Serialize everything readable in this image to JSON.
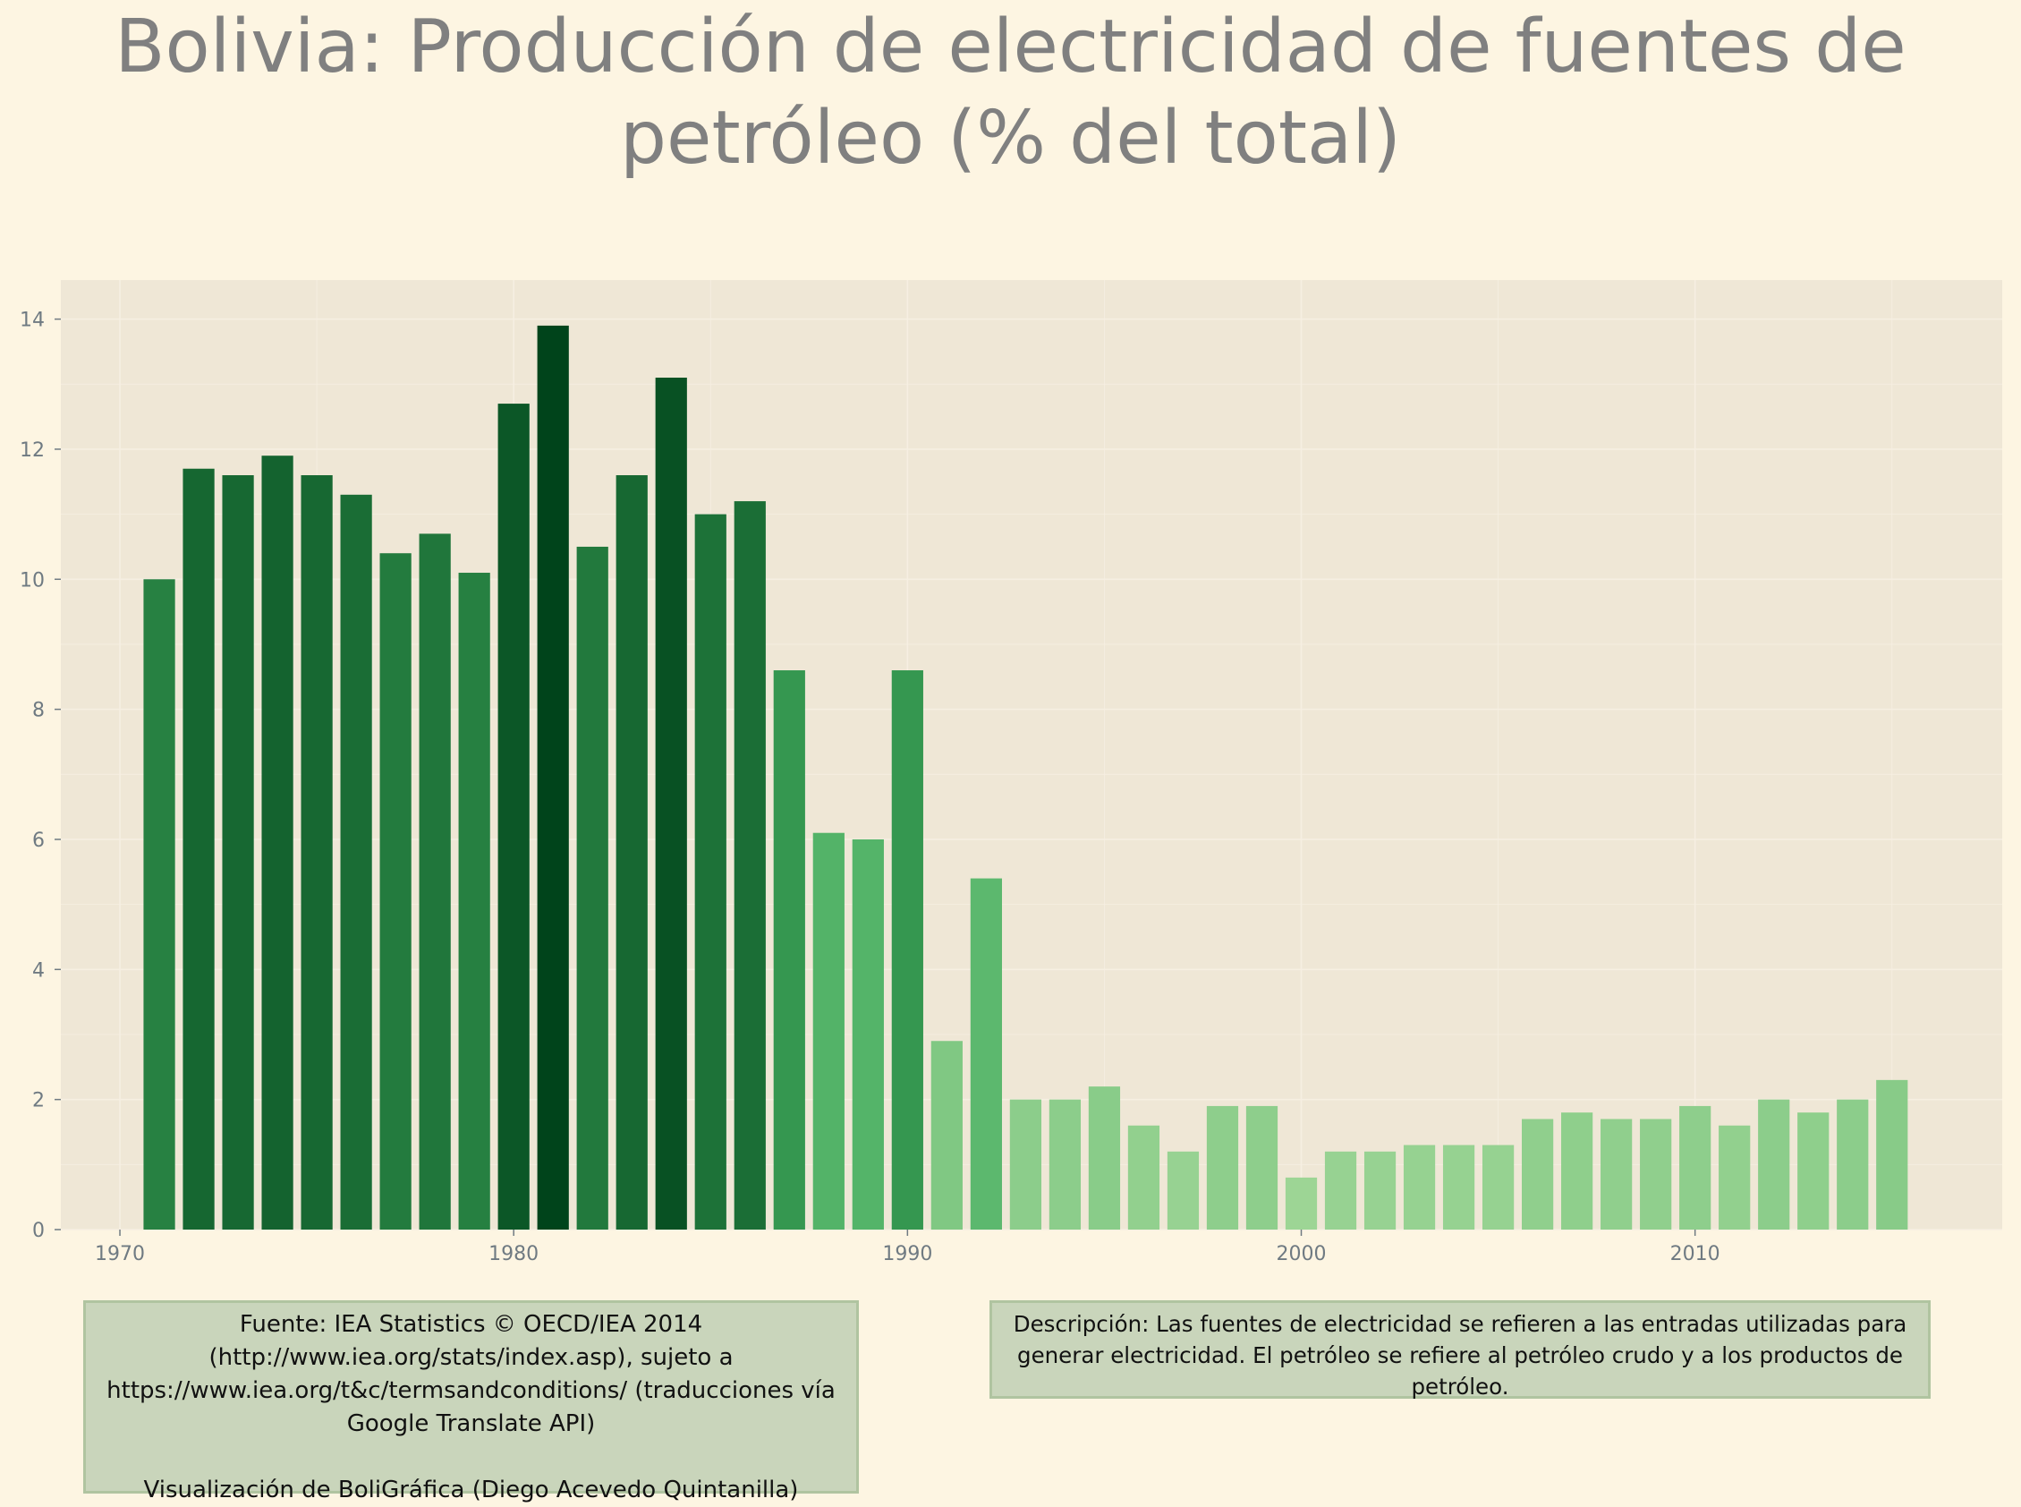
{
  "title": "Bolivia:  Producción de electricidad de fuentes de petróleo (% del total)",
  "source_box": {
    "line1": "Fuente: IEA Statistics © OECD/IEA 2014 (http://www.iea.org/stats/index.asp), sujeto a https://www.iea.org/t&c/termsandconditions/ (traducciones vía Google Translate API)",
    "line2": "Visualización de BoliGráfica (Diego Acevedo Quintanilla)"
  },
  "description_box": {
    "text": "Descripción: Las fuentes de electricidad se refieren a las entradas utilizadas para generar electricidad. El petróleo se refiere al petróleo crudo y a los productos de petróleo."
  },
  "colors": {
    "background": "#fdf5e2",
    "panel": "#efe7d6",
    "color_scale": [
      "#9dd595",
      "#41ab5d",
      "#00441b"
    ]
  },
  "chart_data": {
    "type": "bar",
    "title": "Bolivia:  Producción de electricidad de fuentes de petróleo (% del total)",
    "xlabel": "",
    "ylabel": "",
    "x": [
      1971,
      1972,
      1973,
      1974,
      1975,
      1976,
      1977,
      1978,
      1979,
      1980,
      1981,
      1982,
      1983,
      1984,
      1985,
      1986,
      1987,
      1988,
      1989,
      1990,
      1991,
      1992,
      1993,
      1994,
      1995,
      1996,
      1997,
      1998,
      1999,
      2000,
      2001,
      2002,
      2003,
      2004,
      2005,
      2006,
      2007,
      2008,
      2009,
      2010,
      2011,
      2012,
      2013,
      2014,
      2015
    ],
    "values": [
      10.0,
      11.7,
      11.6,
      11.9,
      11.6,
      11.3,
      10.4,
      10.7,
      10.1,
      12.7,
      13.9,
      10.5,
      11.6,
      13.1,
      11.0,
      11.2,
      8.6,
      6.1,
      6.0,
      8.6,
      2.9,
      5.4,
      2.0,
      2.0,
      2.2,
      1.6,
      1.2,
      1.9,
      1.9,
      0.8,
      1.2,
      1.2,
      1.3,
      1.3,
      1.3,
      1.7,
      1.8,
      1.7,
      1.7,
      1.9,
      1.6,
      2.0,
      1.8,
      2.0,
      2.3
    ],
    "xlim": [
      1968.5,
      2017.8
    ],
    "ylim": [
      0,
      14.6
    ],
    "x_ticks": [
      1970,
      1980,
      1990,
      2000,
      2010
    ],
    "y_ticks": [
      0,
      2,
      4,
      6,
      8,
      10,
      12,
      14
    ],
    "grid": true,
    "legend": "none"
  }
}
